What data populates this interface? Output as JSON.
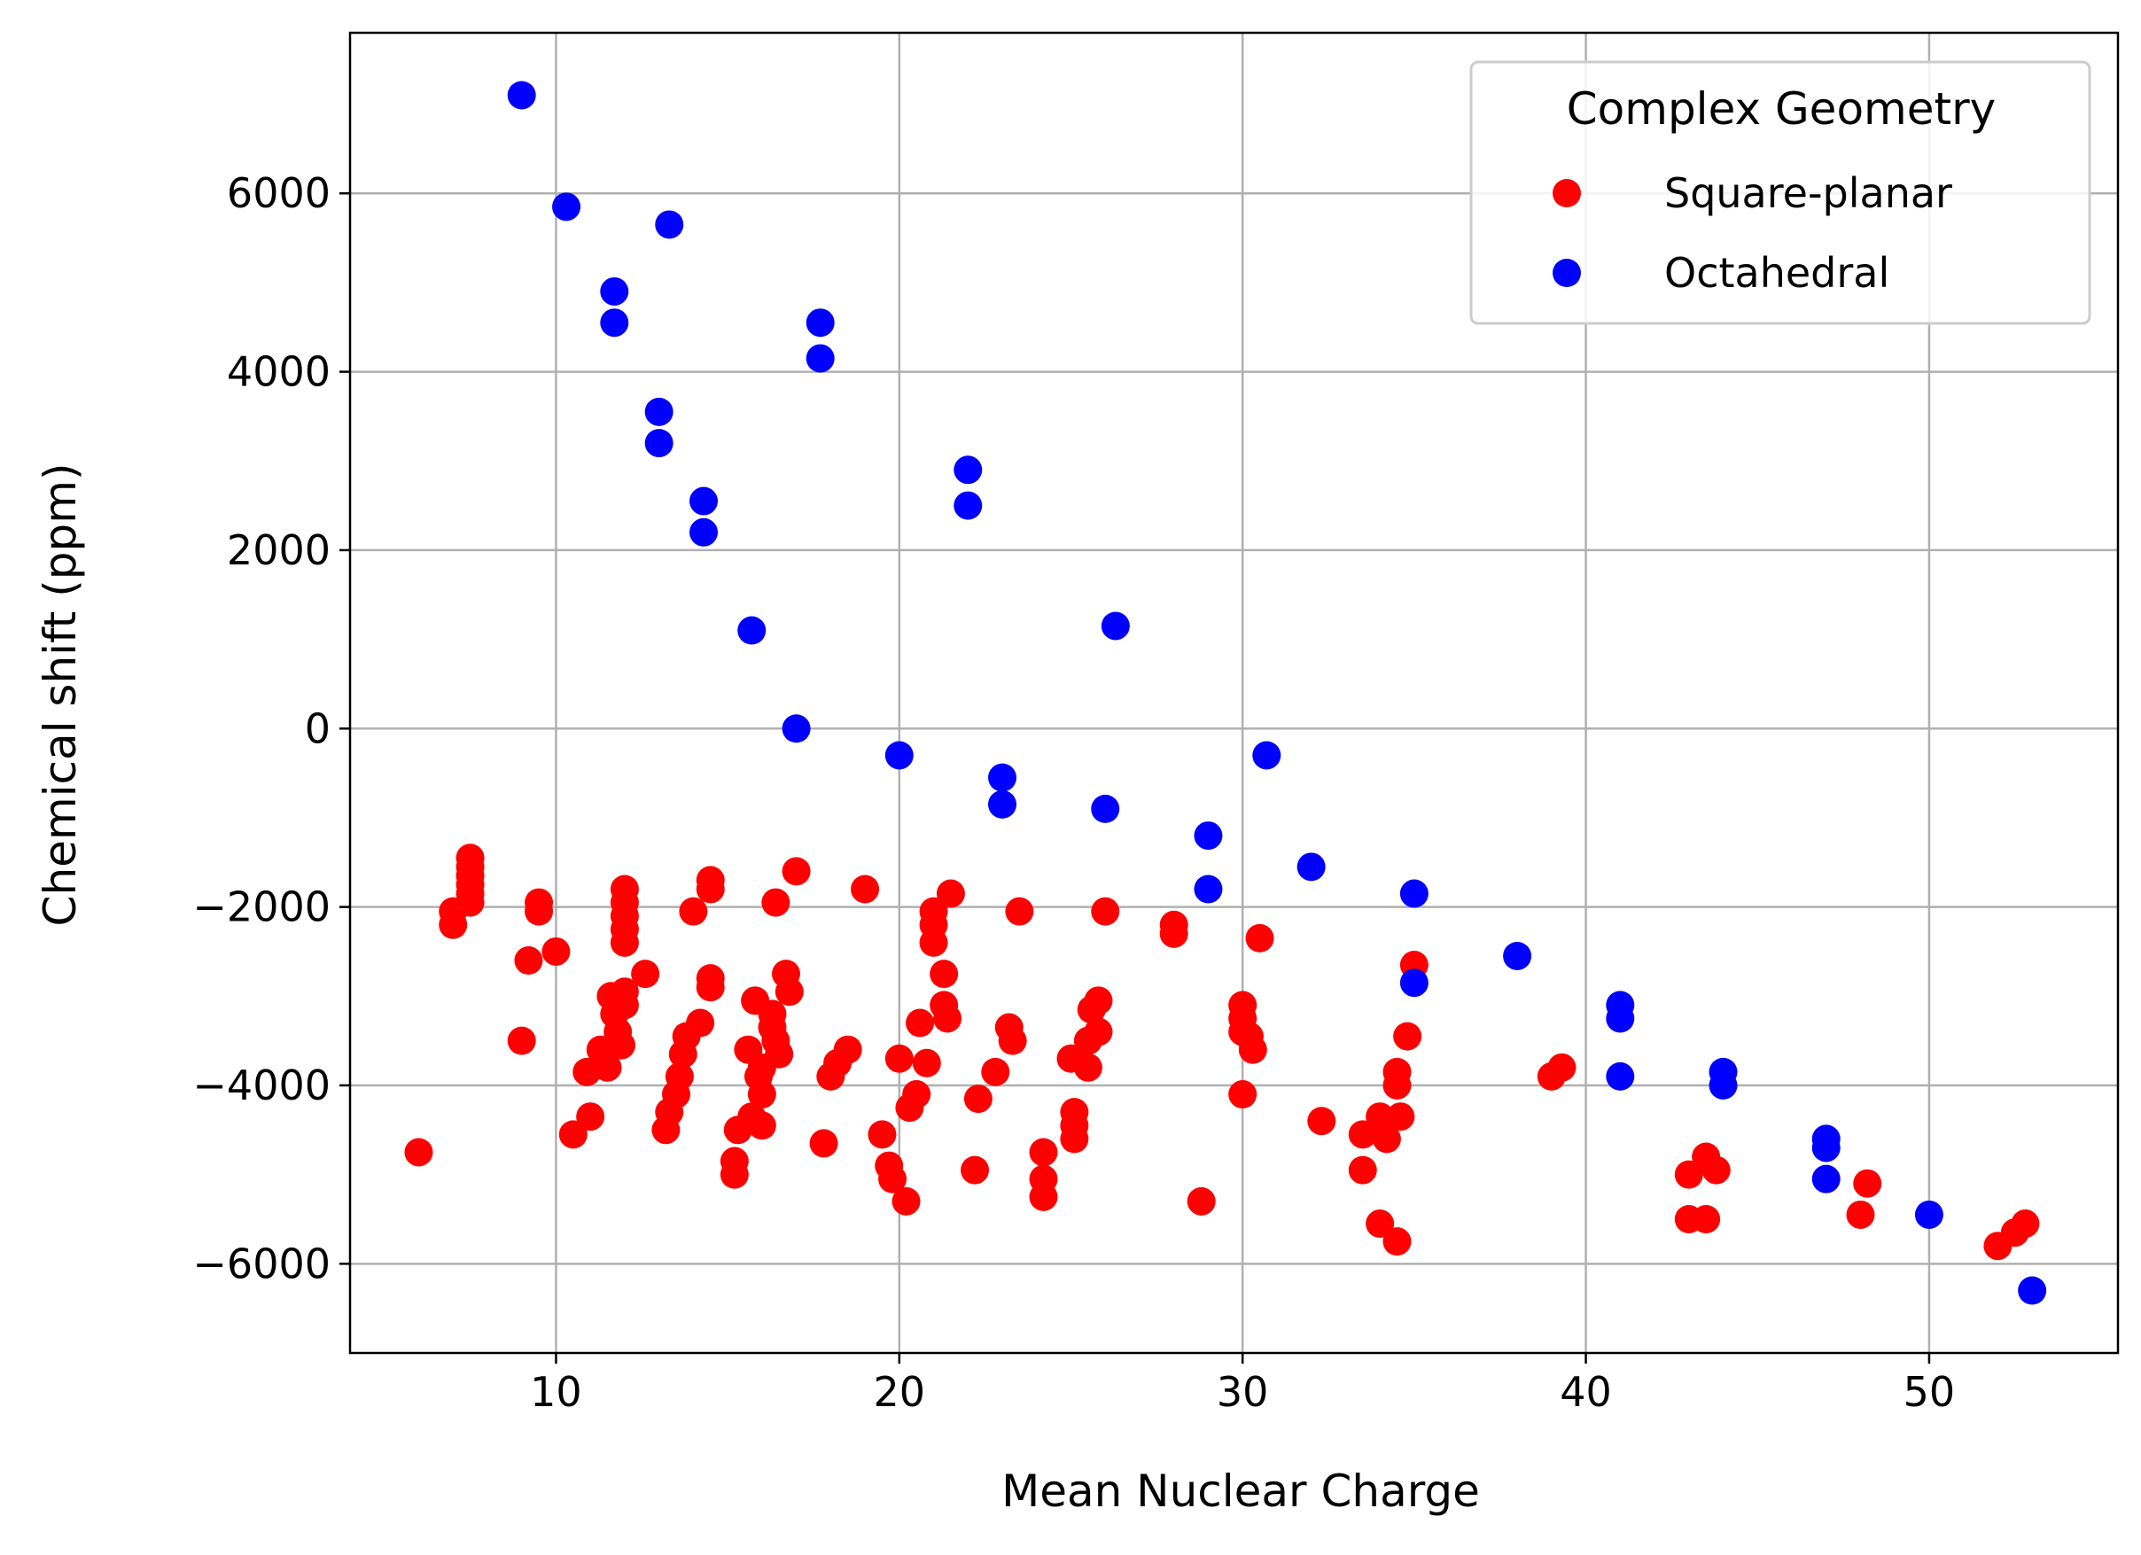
{
  "chart_data": {
    "type": "scatter",
    "title": "",
    "xlabel": "Mean Nuclear Charge",
    "ylabel": "Chemical shift (ppm)",
    "xlim": [
      4,
      55.5
    ],
    "ylim": [
      -7000,
      7800
    ],
    "xticks": [
      10,
      20,
      30,
      40,
      50
    ],
    "yticks": [
      -6000,
      -4000,
      -2000,
      0,
      2000,
      4000,
      6000
    ],
    "xtick_labels": [
      "10",
      "20",
      "30",
      "40",
      "50"
    ],
    "ytick_labels": [
      "−6000",
      "−4000",
      "−2000",
      "0",
      "2000",
      "4000",
      "6000"
    ],
    "grid": true,
    "legend": {
      "title": "Complex Geometry",
      "placement": "top-right",
      "entries": [
        "Square-planar",
        "Octahedral"
      ]
    },
    "colors": {
      "Square-planar": "#ff0000",
      "Octahedral": "#0000ff"
    },
    "series": [
      {
        "name": "Square-planar",
        "color": "#ff0000",
        "points": [
          [
            6,
            -4750
          ],
          [
            7,
            -2200
          ],
          [
            7,
            -2050
          ],
          [
            7.5,
            -1450
          ],
          [
            7.5,
            -1550
          ],
          [
            7.5,
            -1650
          ],
          [
            7.5,
            -1750
          ],
          [
            7.5,
            -1850
          ],
          [
            7.5,
            -1950
          ],
          [
            9,
            -3500
          ],
          [
            9.2,
            -2600
          ],
          [
            9.5,
            -1950
          ],
          [
            9.5,
            -2050
          ],
          [
            10,
            -2500
          ],
          [
            10.5,
            -4550
          ],
          [
            10.9,
            -3850
          ],
          [
            11,
            -4350
          ],
          [
            11.3,
            -3600
          ],
          [
            11.5,
            -3800
          ],
          [
            11.6,
            -3000
          ],
          [
            11.7,
            -3200
          ],
          [
            11.8,
            -3400
          ],
          [
            11.9,
            -3550
          ],
          [
            12,
            -2950
          ],
          [
            12,
            -3100
          ],
          [
            12,
            -1800
          ],
          [
            12,
            -1950
          ],
          [
            12,
            -2100
          ],
          [
            12,
            -2250
          ],
          [
            12,
            -2400
          ],
          [
            12.6,
            -2750
          ],
          [
            13.2,
            -4500
          ],
          [
            13.3,
            -4300
          ],
          [
            13.5,
            -4100
          ],
          [
            13.6,
            -3900
          ],
          [
            13.7,
            -3650
          ],
          [
            13.8,
            -3450
          ],
          [
            14,
            -2050
          ],
          [
            14.2,
            -3300
          ],
          [
            14.5,
            -1700
          ],
          [
            14.5,
            -1800
          ],
          [
            14.5,
            -2800
          ],
          [
            14.5,
            -2900
          ],
          [
            15.2,
            -4850
          ],
          [
            15.2,
            -5000
          ],
          [
            15.3,
            -4500
          ],
          [
            15.6,
            -3600
          ],
          [
            15.7,
            -4350
          ],
          [
            15.8,
            -3050
          ],
          [
            15.9,
            -3900
          ],
          [
            16,
            -3800
          ],
          [
            16,
            -4100
          ],
          [
            16,
            -4450
          ],
          [
            16.3,
            -3200
          ],
          [
            16.3,
            -3350
          ],
          [
            16.4,
            -3500
          ],
          [
            16.5,
            -3650
          ],
          [
            16.4,
            -1950
          ],
          [
            16.7,
            -2750
          ],
          [
            16.8,
            -2950
          ],
          [
            17,
            -1600
          ],
          [
            17.8,
            -4650
          ],
          [
            18,
            -3900
          ],
          [
            18.2,
            -3750
          ],
          [
            18.5,
            -3600
          ],
          [
            19,
            -1800
          ],
          [
            19.5,
            -4550
          ],
          [
            19.7,
            -4900
          ],
          [
            19.8,
            -5050
          ],
          [
            20,
            -3700
          ],
          [
            20.2,
            -5300
          ],
          [
            20.3,
            -4250
          ],
          [
            20.5,
            -4100
          ],
          [
            20.6,
            -3300
          ],
          [
            20.8,
            -3750
          ],
          [
            21,
            -2050
          ],
          [
            21,
            -2200
          ],
          [
            21,
            -2400
          ],
          [
            21.3,
            -2750
          ],
          [
            21.3,
            -3100
          ],
          [
            21.4,
            -3250
          ],
          [
            21.5,
            -1850
          ],
          [
            22.2,
            -4950
          ],
          [
            22.3,
            -4150
          ],
          [
            22.8,
            -3850
          ],
          [
            23.2,
            -3350
          ],
          [
            23.3,
            -3500
          ],
          [
            23.5,
            -2050
          ],
          [
            24.2,
            -4750
          ],
          [
            24.2,
            -5050
          ],
          [
            24.2,
            -5250
          ],
          [
            25,
            -3700
          ],
          [
            25.1,
            -4300
          ],
          [
            25.1,
            -4450
          ],
          [
            25.1,
            -4600
          ],
          [
            25.5,
            -3500
          ],
          [
            25.5,
            -3800
          ],
          [
            25.6,
            -3150
          ],
          [
            25.8,
            -3050
          ],
          [
            25.8,
            -3400
          ],
          [
            26,
            -2050
          ],
          [
            28,
            -2200
          ],
          [
            28,
            -2300
          ],
          [
            28.8,
            -5300
          ],
          [
            30,
            -3100
          ],
          [
            30,
            -3250
          ],
          [
            30,
            -3400
          ],
          [
            30,
            -4100
          ],
          [
            30.2,
            -3450
          ],
          [
            30.3,
            -3600
          ],
          [
            30.5,
            -2350
          ],
          [
            32.3,
            -4400
          ],
          [
            33.5,
            -4550
          ],
          [
            33.5,
            -4950
          ],
          [
            34,
            -5550
          ],
          [
            34,
            -4350
          ],
          [
            34.2,
            -4600
          ],
          [
            34.5,
            -5750
          ],
          [
            34.5,
            -3850
          ],
          [
            34.5,
            -4000
          ],
          [
            34.6,
            -4350
          ],
          [
            34.8,
            -3450
          ],
          [
            35,
            -2650
          ],
          [
            39,
            -3900
          ],
          [
            39.3,
            -3800
          ],
          [
            43,
            -5000
          ],
          [
            43,
            -5500
          ],
          [
            43.5,
            -4800
          ],
          [
            43.5,
            -5500
          ],
          [
            43.8,
            -4950
          ],
          [
            48,
            -5450
          ],
          [
            48.2,
            -5100
          ],
          [
            52,
            -5800
          ],
          [
            52.5,
            -5650
          ],
          [
            52.8,
            -5550
          ]
        ]
      },
      {
        "name": "Octahedral",
        "color": "#0000ff",
        "points": [
          [
            9,
            7100
          ],
          [
            10.3,
            5850
          ],
          [
            11.7,
            4900
          ],
          [
            11.7,
            4550
          ],
          [
            13.3,
            5650
          ],
          [
            13,
            3550
          ],
          [
            13,
            3200
          ],
          [
            14.3,
            2550
          ],
          [
            14.3,
            2200
          ],
          [
            15.7,
            1100
          ],
          [
            17,
            0
          ],
          [
            17.7,
            4550
          ],
          [
            17.7,
            4150
          ],
          [
            20,
            -300
          ],
          [
            22,
            2900
          ],
          [
            22,
            2500
          ],
          [
            23,
            -550
          ],
          [
            23,
            -850
          ],
          [
            26,
            -900
          ],
          [
            26.3,
            1150
          ],
          [
            29,
            -1200
          ],
          [
            29,
            -1800
          ],
          [
            30.7,
            -300
          ],
          [
            32,
            -1550
          ],
          [
            35,
            -1850
          ],
          [
            35,
            -2850
          ],
          [
            38,
            -2550
          ],
          [
            41,
            -3100
          ],
          [
            41,
            -3250
          ],
          [
            41,
            -3900
          ],
          [
            44,
            -3850
          ],
          [
            44,
            -4000
          ],
          [
            47,
            -4600
          ],
          [
            47,
            -4700
          ],
          [
            47,
            -5050
          ],
          [
            50,
            -5450
          ],
          [
            53,
            -6300
          ]
        ]
      }
    ]
  }
}
